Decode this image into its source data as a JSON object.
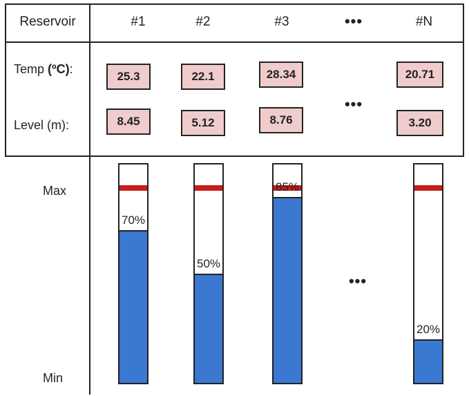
{
  "header": {
    "reservoir_label": "Reservoir",
    "columns": [
      "#1",
      "#2",
      "#3",
      "#N"
    ],
    "ellipsis": "•••"
  },
  "rows": {
    "temp_label_prefix": "Temp ",
    "temp_label_unit": "(ºC)",
    "temp_label_suffix": ":",
    "level_label": "Level (m):"
  },
  "reservoirs": [
    {
      "id": "#1",
      "temp": "25.3",
      "level": "8.45",
      "fill_percent": 70,
      "percent_label": "70%"
    },
    {
      "id": "#2",
      "temp": "22.1",
      "level": "5.12",
      "fill_percent": 50,
      "percent_label": "50%"
    },
    {
      "id": "#3",
      "temp": "28.34",
      "level": "8.76",
      "fill_percent": 85,
      "percent_label": "85%"
    },
    {
      "id": "#N",
      "temp": "20.71",
      "level": "3.20",
      "fill_percent": 20,
      "percent_label": "20%"
    }
  ],
  "scale": {
    "max_label": "Max",
    "min_label": "Min"
  },
  "colors": {
    "value_box": "#f0cccc",
    "water": "#3a78d1",
    "max_marker": "#c81e1e"
  }
}
